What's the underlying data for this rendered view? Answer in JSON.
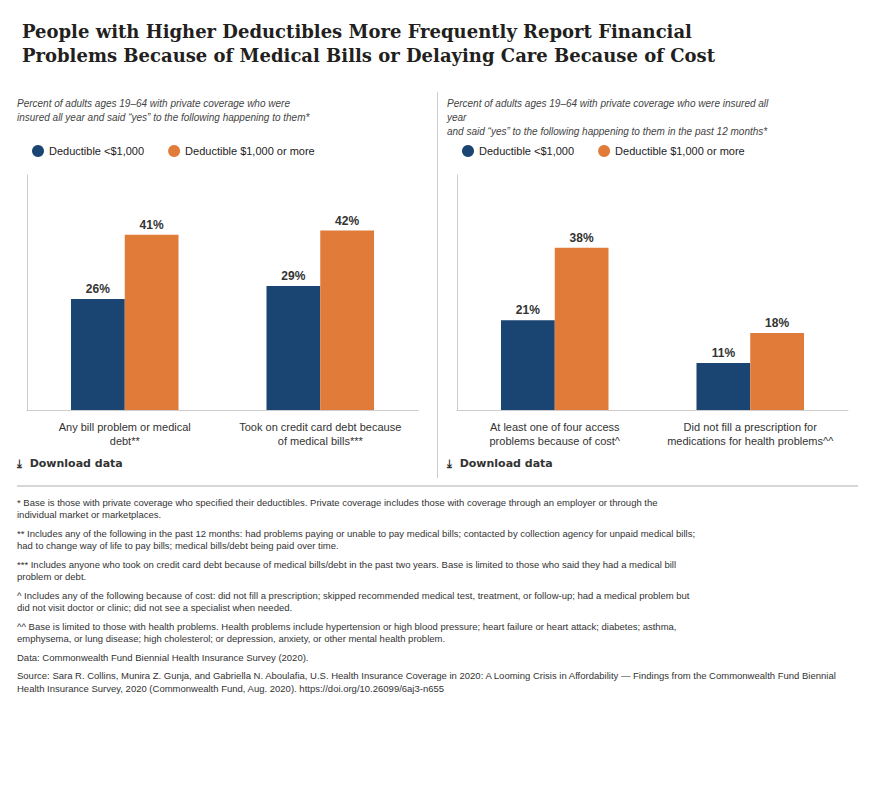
{
  "chart_data": [
    {
      "type": "bar",
      "title": "People with Higher Deductibles More Frequently Report Financial\nProblems Because of Medical Bills or Delaying Care Because of Cost",
      "subtitle": "Percent of adults ages 19–64 with private coverage who were\ninsured all year and said “yes” to the following happening to them*",
      "categories": [
        "Any bill problem or medical\ndebt**",
        "Took on credit card debt because\nof medical bills***"
      ],
      "series": [
        {
          "name": "Deductible <$1,000",
          "color": "#1a4471",
          "values": [
            26,
            29
          ],
          "value_labels": [
            "26%",
            "29%"
          ]
        },
        {
          "name": "Deductible $1,000 or more",
          "color": "#e07b39",
          "values": [
            41,
            42
          ],
          "value_labels": [
            "41%",
            "42%"
          ]
        }
      ],
      "ylim": [
        0,
        55
      ],
      "data_labels": true,
      "tick_labels": "x",
      "grid": false,
      "legend": "top",
      "annotations": [
        "⤓  Download data"
      ]
    },
    {
      "type": "bar",
      "subtitle": "Percent of adults ages 19–64 with private coverage who were insured all year\nand said “yes” to the following happening to them in the past 12 months*",
      "categories": [
        "At least one of four access\nproblems because of cost^",
        "Did not fill a prescription for\nmedications for health problems^^"
      ],
      "series": [
        {
          "name": "Deductible <$1,000",
          "color": "#1a4471",
          "values": [
            21,
            11
          ],
          "value_labels": [
            "21%",
            "11%"
          ]
        },
        {
          "name": "Deductible $1,000 or more",
          "color": "#e07b39",
          "values": [
            38,
            18
          ],
          "value_labels": [
            "38%",
            "18%"
          ]
        }
      ],
      "ylim": [
        0,
        55
      ],
      "data_labels": true,
      "tick_labels": "x",
      "grid": false,
      "legend": "top",
      "annotations": [
        "⤓  Download data",
        "* Base is those with private coverage who specified their deductibles. Private coverage includes those with coverage through an employer or through the\nindividual market or marketplaces.",
        "** Includes any of the following in the past 12 months: had problems paying or unable to pay medical bills; contacted by collection agency for unpaid medical bills;\nhad to change way of life to pay bills; medical bills/debt being paid over time.",
        "*** Includes anyone who took on credit card debt because of medical bills/debt in the past two years. Base is limited to those who said they had a medical bill\nproblem or debt.",
        "^ Includes any of the following because of cost: did not fill a prescription; skipped recommended medical test, treatment, or follow-up; had a medical problem but\ndid not visit doctor or clinic; did not see a specialist when needed.",
        "^^ Base is limited to those with health problems. Health problems include hypertension or high blood pressure; heart failure or heart attack; diabetes; asthma,\nemphysema, or lung disease; high cholesterol; or depression, anxiety, or other mental health problem.",
        "Data: Commonwealth Fund Biennial Health Insurance Survey (2020).",
        "Source: Sara R. Collins, Munira Z. Gunja, and Gabriella N. Aboulafia, U.S. Health Insurance Coverage in 2020: A Looming Crisis in Affordability — Findings from the Commonwealth Fund Biennial Health Insurance Survey, 2020 (Commonwealth Fund, Aug. 2020). https://doi.org/10.26099/6aj3-n655"
      ]
    }
  ]
}
